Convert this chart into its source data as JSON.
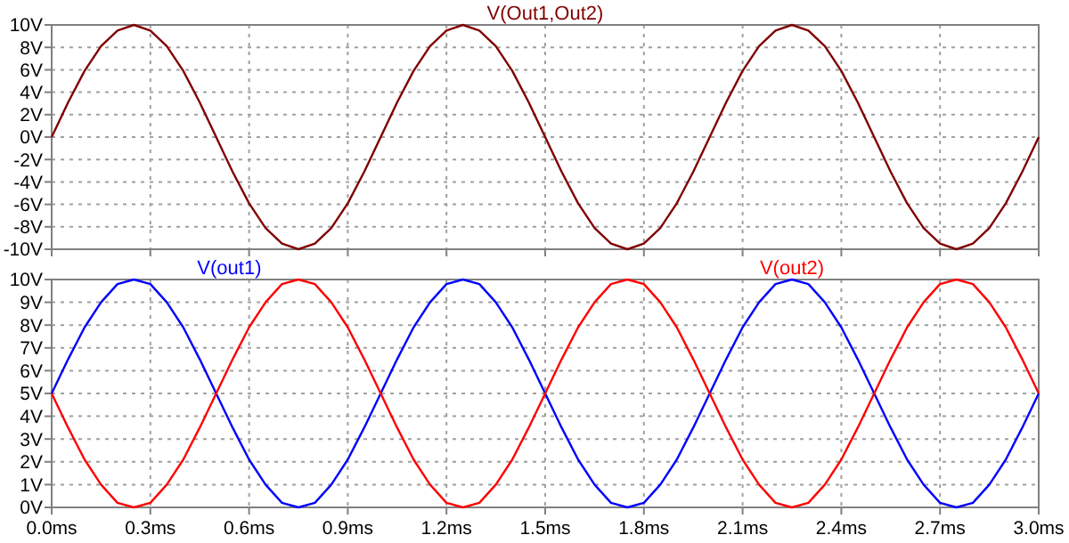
{
  "chart_data": [
    {
      "type": "line",
      "x": [
        0,
        0.05,
        0.1,
        0.15,
        0.2,
        0.25,
        0.3,
        0.35,
        0.4,
        0.45,
        0.5,
        0.55,
        0.6,
        0.65,
        0.7,
        0.75,
        0.8,
        0.85,
        0.9,
        0.95,
        1,
        1.05,
        1.1,
        1.15,
        1.2,
        1.25,
        1.3,
        1.35,
        1.4,
        1.45,
        1.5,
        1.55,
        1.6,
        1.65,
        1.7,
        1.75,
        1.8,
        1.85,
        1.9,
        1.95,
        2,
        2.05,
        2.1,
        2.15,
        2.2,
        2.25,
        2.3,
        2.35,
        2.4,
        2.45,
        2.5,
        2.55,
        2.6,
        2.65,
        2.7,
        2.75,
        2.8,
        2.85,
        2.9,
        2.95,
        3
      ],
      "series": [
        {
          "name": "V(Out1,Out2)",
          "color": "#800000",
          "values": [
            0,
            3.1,
            5.9,
            8.1,
            9.5,
            10,
            9.5,
            8.1,
            5.9,
            3.1,
            0,
            -3.1,
            -5.9,
            -8.1,
            -9.5,
            -10,
            -9.5,
            -8.1,
            -5.9,
            -3.1,
            0,
            3.1,
            5.9,
            8.1,
            9.5,
            10,
            9.5,
            8.1,
            5.9,
            3.1,
            0,
            -3.1,
            -5.9,
            -8.1,
            -9.5,
            -10,
            -9.5,
            -8.1,
            -5.9,
            -3.1,
            0,
            3.1,
            5.9,
            8.1,
            9.5,
            10,
            9.5,
            8.1,
            5.9,
            3.1,
            0,
            -3.1,
            -5.9,
            -8.1,
            -9.5,
            -10,
            -9.5,
            -8.1,
            -5.9,
            -3.1,
            0
          ]
        }
      ],
      "xlim": [
        0,
        3
      ],
      "xticks": [
        0,
        0.3,
        0.6,
        0.9,
        1.2,
        1.5,
        1.8,
        2.1,
        2.4,
        2.7,
        3
      ],
      "ylim": [
        -10,
        10
      ],
      "yticks": [
        {
          "value": -10,
          "label": "-10V"
        },
        {
          "value": -8,
          "label": "-8V"
        },
        {
          "value": -6,
          "label": "-6V"
        },
        {
          "value": -4,
          "label": "-4V"
        },
        {
          "value": -2,
          "label": "-2V"
        },
        {
          "value": 0,
          "label": "0V"
        },
        {
          "value": 2,
          "label": "2V"
        },
        {
          "value": 4,
          "label": "4V"
        },
        {
          "value": 6,
          "label": "6V"
        },
        {
          "value": 8,
          "label": "8V"
        },
        {
          "value": 10,
          "label": "10V"
        }
      ],
      "grid": true,
      "tick_labels": "y"
    },
    {
      "type": "line",
      "x": [
        0,
        0.05,
        0.1,
        0.15,
        0.2,
        0.25,
        0.3,
        0.35,
        0.4,
        0.45,
        0.5,
        0.55,
        0.6,
        0.65,
        0.7,
        0.75,
        0.8,
        0.85,
        0.9,
        0.95,
        1,
        1.05,
        1.1,
        1.15,
        1.2,
        1.25,
        1.3,
        1.35,
        1.4,
        1.45,
        1.5,
        1.55,
        1.6,
        1.65,
        1.7,
        1.75,
        1.8,
        1.85,
        1.9,
        1.95,
        2,
        2.05,
        2.1,
        2.15,
        2.2,
        2.25,
        2.3,
        2.35,
        2.4,
        2.45,
        2.5,
        2.55,
        2.6,
        2.65,
        2.7,
        2.75,
        2.8,
        2.85,
        2.9,
        2.95,
        3
      ],
      "series": [
        {
          "name": "V(out1)",
          "color": "#0000ff",
          "values": [
            5,
            6.5,
            7.9,
            9,
            9.8,
            10,
            9.8,
            9,
            7.9,
            6.5,
            5,
            3.5,
            2.1,
            1,
            0.2,
            0,
            0.2,
            1,
            2.1,
            3.5,
            5,
            6.5,
            7.9,
            9,
            9.8,
            10,
            9.8,
            9,
            7.9,
            6.5,
            5,
            3.5,
            2.1,
            1,
            0.2,
            0,
            0.2,
            1,
            2.1,
            3.5,
            5,
            6.5,
            7.9,
            9,
            9.8,
            10,
            9.8,
            9,
            7.9,
            6.5,
            5,
            3.5,
            2.1,
            1,
            0.2,
            0,
            0.2,
            1,
            2.1,
            3.5,
            5
          ]
        },
        {
          "name": "V(out2)",
          "color": "#ff0000",
          "values": [
            5,
            3.5,
            2.1,
            1,
            0.2,
            0,
            0.2,
            1,
            2.1,
            3.5,
            5,
            6.5,
            7.9,
            9,
            9.8,
            10,
            9.8,
            9,
            7.9,
            6.5,
            5,
            3.5,
            2.1,
            1,
            0.2,
            0,
            0.2,
            1,
            2.1,
            3.5,
            5,
            6.5,
            7.9,
            9,
            9.8,
            10,
            9.8,
            9,
            7.9,
            6.5,
            5,
            3.5,
            2.1,
            1,
            0.2,
            0,
            0.2,
            1,
            2.1,
            3.5,
            5,
            6.5,
            7.9,
            9,
            9.8,
            10,
            9.8,
            9,
            7.9,
            6.5,
            5
          ]
        }
      ],
      "xlim": [
        0,
        3
      ],
      "xticks": [
        {
          "value": 0,
          "label": "0.0ms"
        },
        {
          "value": 0.3,
          "label": "0.3ms"
        },
        {
          "value": 0.6,
          "label": "0.6ms"
        },
        {
          "value": 0.9,
          "label": "0.9ms"
        },
        {
          "value": 1.2,
          "label": "1.2ms"
        },
        {
          "value": 1.5,
          "label": "1.5ms"
        },
        {
          "value": 1.8,
          "label": "1.8ms"
        },
        {
          "value": 2.1,
          "label": "2.1ms"
        },
        {
          "value": 2.4,
          "label": "2.4ms"
        },
        {
          "value": 2.7,
          "label": "2.7ms"
        },
        {
          "value": 3,
          "label": "3.0ms"
        }
      ],
      "ylim": [
        0,
        10
      ],
      "yticks": [
        {
          "value": 0,
          "label": "0V"
        },
        {
          "value": 1,
          "label": "1V"
        },
        {
          "value": 2,
          "label": "2V"
        },
        {
          "value": 3,
          "label": "3V"
        },
        {
          "value": 4,
          "label": "4V"
        },
        {
          "value": 5,
          "label": "5V"
        },
        {
          "value": 6,
          "label": "6V"
        },
        {
          "value": 7,
          "label": "7V"
        },
        {
          "value": 8,
          "label": "8V"
        },
        {
          "value": 9,
          "label": "9V"
        },
        {
          "value": 10,
          "label": "10V"
        }
      ],
      "grid": true
    }
  ]
}
